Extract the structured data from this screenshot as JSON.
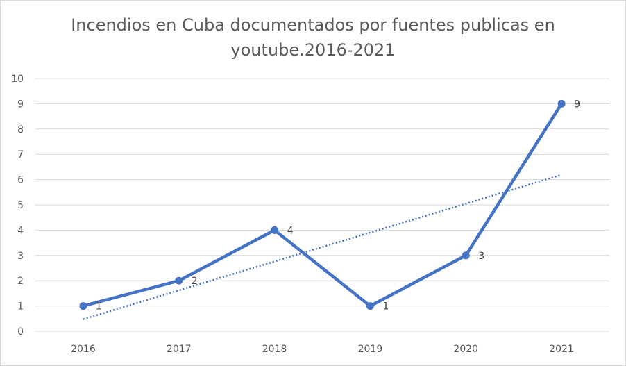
{
  "chart_data": {
    "type": "line",
    "title_line1": "Incendios en Cuba documentados por fuentes publicas en",
    "title_line2": "youtube.2016-2021",
    "categories": [
      "2016",
      "2017",
      "2018",
      "2019",
      "2020",
      "2021"
    ],
    "series": [
      {
        "values": [
          1,
          2,
          4,
          1,
          3,
          9
        ],
        "color": "#4472C4",
        "data_labels": true
      }
    ],
    "trendline": {
      "type": "linear",
      "style": "dotted",
      "color": "#4472C4"
    },
    "ylim": [
      0,
      10
    ],
    "yticks": [
      0,
      1,
      2,
      3,
      4,
      5,
      6,
      7,
      8,
      9,
      10
    ],
    "grid": true,
    "legend": "none"
  }
}
